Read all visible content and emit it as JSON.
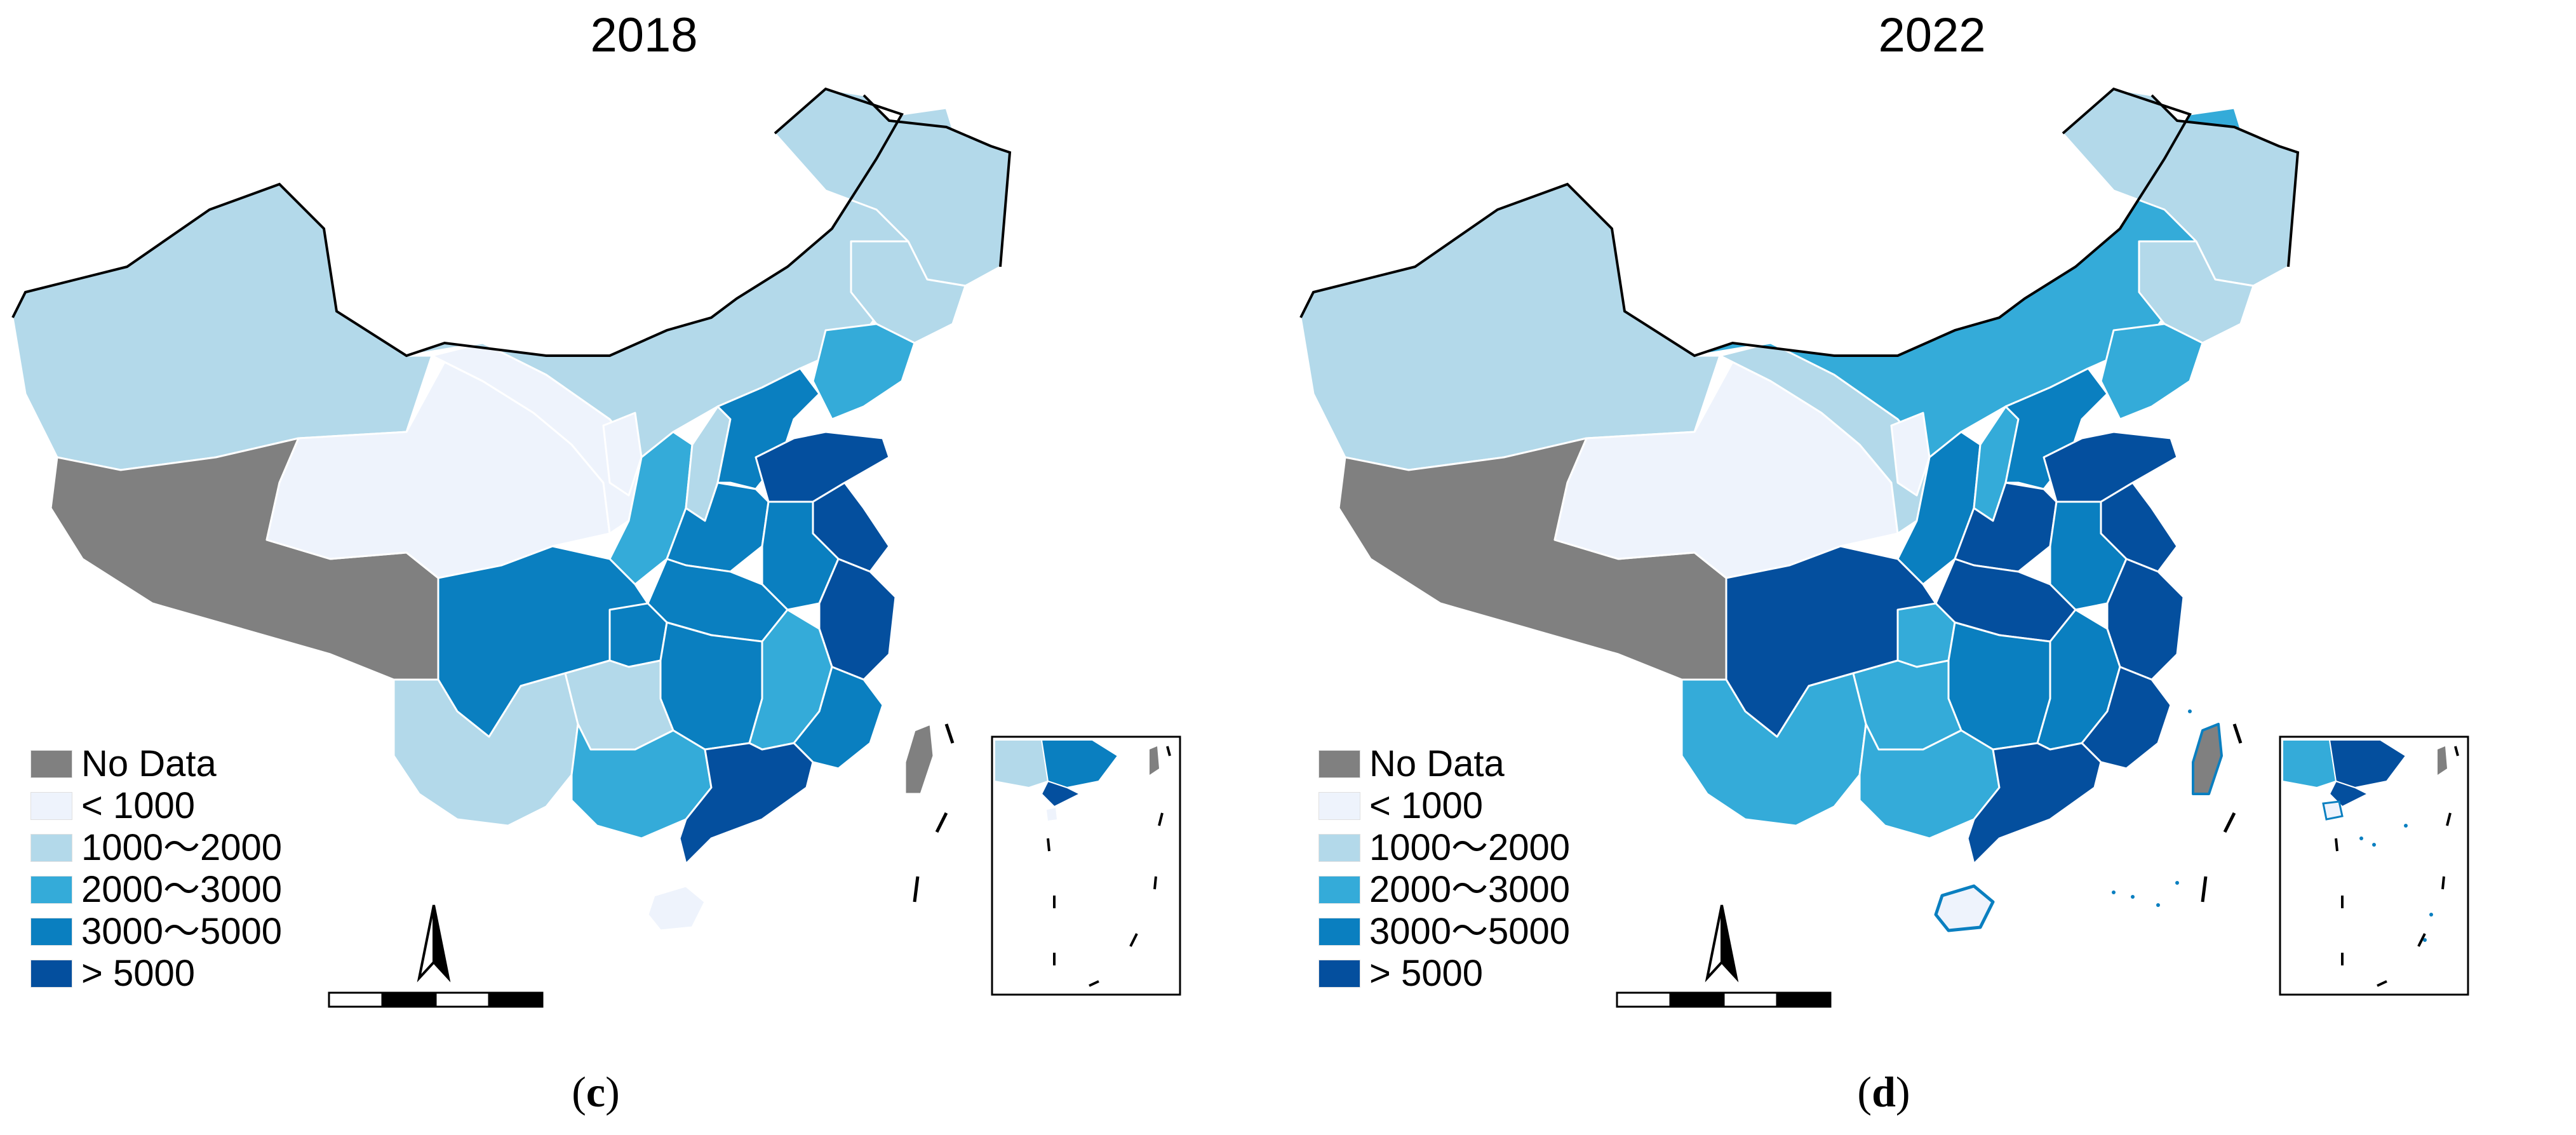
{
  "legend": {
    "items": [
      {
        "label": "No Data",
        "color": "#808080"
      },
      {
        "label": "< 1000",
        "color": "#eef3fc"
      },
      {
        "label": "1000～2000",
        "color": "#b3d9ea"
      },
      {
        "label": "2000～3000",
        "color": "#34abd9"
      },
      {
        "label": "3000～5000",
        "color": "#0a7fc0"
      },
      {
        "label": "> 5000",
        "color": "#044f9e"
      }
    ]
  },
  "panels": [
    {
      "year": "2018",
      "caption_letter": "c",
      "caption_open": "(",
      "caption_close": ")"
    },
    {
      "year": "2022",
      "caption_letter": "d",
      "caption_open": "(",
      "caption_close": ")"
    }
  ],
  "colors": {
    "no_data": "#808080",
    "lt_1000": "#eef3fc",
    "c1000_2000": "#b3d9ea",
    "c2000_3000": "#34abd9",
    "c3000_5000": "#0a7fc0",
    "gt_5000": "#044f9e"
  }
}
